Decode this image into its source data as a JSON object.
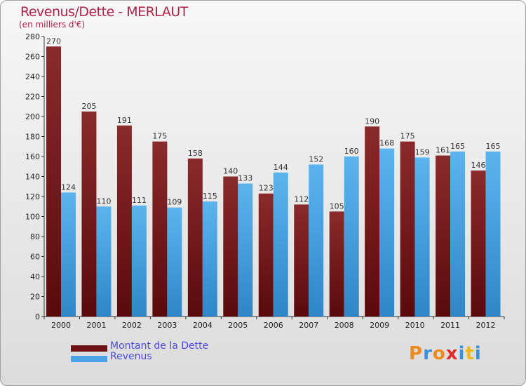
{
  "title": "Revenus/Dette - MERLAUT",
  "subtitle": "(en milliers d'€)",
  "logo_text": "Proxiti",
  "legend": [
    {
      "label": "Montant de la Dette",
      "color": "#6b1214"
    },
    {
      "label": "Revenus",
      "color": "#4aa3e6"
    }
  ],
  "chart_data": {
    "type": "bar",
    "title": "Revenus/Dette - MERLAUT",
    "subtitle": "(en milliers d'€)",
    "categories": [
      "2000",
      "2001",
      "2002",
      "2003",
      "2004",
      "2005",
      "2006",
      "2007",
      "2008",
      "2009",
      "2010",
      "2011",
      "2012"
    ],
    "series": [
      {
        "name": "Montant de la Dette",
        "values": [
          270,
          205,
          191,
          175,
          158,
          140,
          123,
          112,
          105,
          190,
          175,
          161,
          146
        ],
        "color": "#7a1a1c"
      },
      {
        "name": "Revenus",
        "values": [
          124,
          110,
          111,
          109,
          115,
          133,
          144,
          152,
          160,
          168,
          159,
          165,
          165
        ],
        "color": "#4aa3e6"
      }
    ],
    "ylim": [
      0,
      280
    ],
    "yticks": [
      0,
      20,
      40,
      60,
      80,
      100,
      120,
      140,
      160,
      180,
      200,
      220,
      240,
      260,
      280
    ],
    "grid": false,
    "legend_position": "bottom-left"
  }
}
